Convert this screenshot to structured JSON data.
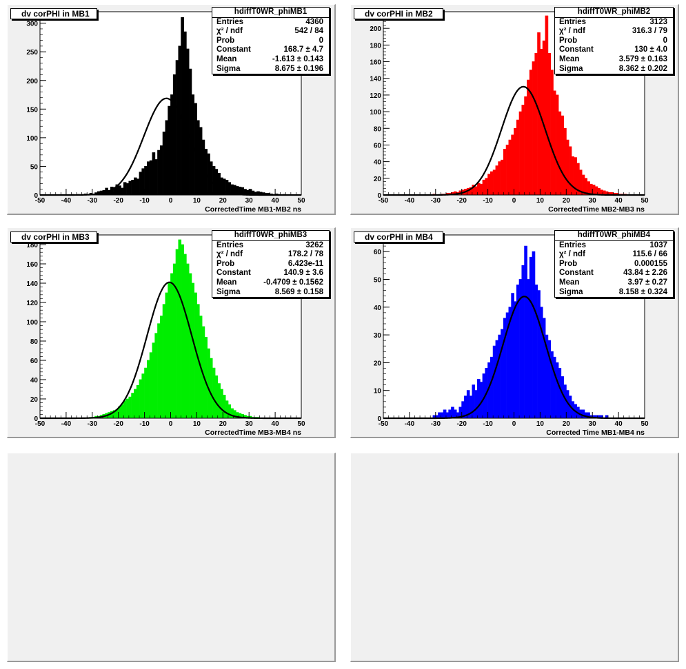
{
  "chart_data": [
    {
      "type": "bar",
      "title": "dv corPHI in MB1",
      "hist_name": "hdiffT0WR_phiMB1",
      "xlabel": "CorrectedTime MB1-MB2   ns",
      "xlim": [
        -50,
        50
      ],
      "ylim": [
        0,
        320
      ],
      "xticks": [
        -50,
        -40,
        -30,
        -20,
        -10,
        0,
        10,
        20,
        30,
        40,
        50
      ],
      "yticks": [
        0,
        50,
        100,
        150,
        200,
        250,
        300
      ],
      "color": "#000000",
      "stats": [
        {
          "label": "Entries",
          "value": "4360"
        },
        {
          "label": "χ² / ndf",
          "value": "542 / 84"
        },
        {
          "label": "Prob",
          "value": "0"
        },
        {
          "label": "Constant",
          "value": "168.7 ± 4.7"
        },
        {
          "label": "Mean",
          "value": "-1.613 ± 0.143"
        },
        {
          "label": "Sigma",
          "value": "8.675 ± 0.196"
        }
      ],
      "fit": {
        "constant": 168.7,
        "mean": -1.613,
        "sigma": 8.675
      },
      "bin_width": 1,
      "x_start": -50,
      "values": [
        0,
        0,
        0,
        0,
        0,
        0,
        0,
        0,
        0,
        0,
        0,
        0,
        1,
        0,
        1,
        0,
        1,
        2,
        1,
        3,
        2,
        4,
        6,
        7,
        8,
        12,
        8,
        14,
        13,
        18,
        16,
        12,
        22,
        20,
        24,
        26,
        30,
        28,
        40,
        46,
        50,
        58,
        60,
        74,
        62,
        78,
        86,
        110,
        130,
        155,
        175,
        210,
        235,
        260,
        310,
        285,
        255,
        220,
        175,
        160,
        130,
        118,
        96,
        80,
        72,
        58,
        50,
        45,
        38,
        30,
        28,
        26,
        22,
        18,
        17,
        15,
        14,
        13,
        10,
        8,
        10,
        7,
        5,
        6,
        5,
        4,
        3,
        3,
        2,
        1,
        2,
        1,
        0,
        1,
        0,
        0,
        0,
        0,
        0,
        0
      ]
    },
    {
      "type": "bar",
      "title": "dv corPHI in MB2",
      "hist_name": "hdiffT0WR_phiMB2",
      "xlabel": "CorrectedTime MB2-MB3   ns",
      "xlim": [
        -50,
        50
      ],
      "ylim": [
        0,
        220
      ],
      "xticks": [
        -50,
        -40,
        -30,
        -20,
        -10,
        0,
        10,
        20,
        30,
        40,
        50
      ],
      "yticks": [
        0,
        20,
        40,
        60,
        80,
        100,
        120,
        140,
        160,
        180,
        200
      ],
      "color": "#ff0000",
      "stats": [
        {
          "label": "Entries",
          "value": "3123"
        },
        {
          "label": "χ² / ndf",
          "value": "316.3 / 79"
        },
        {
          "label": "Prob",
          "value": "0"
        },
        {
          "label": "Constant",
          "value": "130 ± 4.0"
        },
        {
          "label": "Mean",
          "value": "3.579 ± 0.163"
        },
        {
          "label": "Sigma",
          "value": "8.362 ± 0.202"
        }
      ],
      "fit": {
        "constant": 130.0,
        "mean": 3.579,
        "sigma": 8.362
      },
      "bin_width": 1,
      "x_start": -50,
      "values": [
        0,
        0,
        0,
        0,
        0,
        0,
        0,
        0,
        0,
        0,
        0,
        0,
        0,
        0,
        0,
        0,
        0,
        0,
        0,
        1,
        0,
        0,
        1,
        1,
        2,
        2,
        3,
        4,
        3,
        5,
        6,
        7,
        8,
        9,
        12,
        10,
        14,
        13,
        18,
        20,
        25,
        28,
        30,
        35,
        40,
        42,
        55,
        60,
        66,
        72,
        80,
        90,
        100,
        108,
        118,
        138,
        150,
        160,
        170,
        195,
        175,
        185,
        215,
        170,
        150,
        125,
        120,
        100,
        95,
        80,
        66,
        58,
        46,
        45,
        38,
        30,
        24,
        20,
        16,
        13,
        12,
        10,
        8,
        6,
        5,
        4,
        3,
        3,
        2,
        2,
        1,
        1,
        1,
        0,
        0,
        0,
        0,
        0,
        0,
        0
      ]
    },
    {
      "type": "bar",
      "title": "dv corPHI in MB3",
      "hist_name": "hdiffT0WR_phiMB3",
      "xlabel": "CorrectedTime MB3-MB4   ns",
      "xlim": [
        -50,
        50
      ],
      "ylim": [
        0,
        190
      ],
      "xticks": [
        -50,
        -40,
        -30,
        -20,
        -10,
        0,
        10,
        20,
        30,
        40,
        50
      ],
      "yticks": [
        0,
        20,
        40,
        60,
        80,
        100,
        120,
        140,
        160,
        180
      ],
      "color": "#00ee00",
      "stats": [
        {
          "label": "Entries",
          "value": "3262"
        },
        {
          "label": "χ² / ndf",
          "value": "178.2 / 78"
        },
        {
          "label": "Prob",
          "value": "6.423e-11"
        },
        {
          "label": "Constant",
          "value": "140.9 ± 3.6"
        },
        {
          "label": "Mean",
          "value": "-0.4709 ± 0.1562"
        },
        {
          "label": "Sigma",
          "value": "8.569 ± 0.158"
        }
      ],
      "fit": {
        "constant": 140.9,
        "mean": -0.4709,
        "sigma": 8.569
      },
      "bin_width": 1,
      "x_start": -50,
      "values": [
        0,
        0,
        0,
        0,
        0,
        0,
        0,
        0,
        0,
        0,
        0,
        0,
        0,
        0,
        0,
        0,
        0,
        0,
        0,
        1,
        1,
        2,
        2,
        3,
        4,
        5,
        6,
        7,
        8,
        9,
        12,
        14,
        18,
        20,
        22,
        26,
        30,
        34,
        40,
        46,
        52,
        60,
        68,
        78,
        88,
        98,
        106,
        118,
        130,
        140,
        150,
        160,
        175,
        185,
        180,
        170,
        160,
        150,
        140,
        130,
        118,
        106,
        95,
        84,
        72,
        62,
        52,
        44,
        36,
        30,
        24,
        18,
        14,
        10,
        8,
        6,
        5,
        4,
        3,
        2,
        2,
        1,
        1,
        1,
        0,
        0,
        0,
        0,
        0,
        0,
        0,
        0,
        0,
        0,
        0,
        0,
        0,
        0,
        0,
        0
      ]
    },
    {
      "type": "bar",
      "title": "dv corPHI in MB4",
      "hist_name": "hdiffT0WR_phiMB4",
      "xlabel": "Corrected Time MB1-MB4   ns",
      "xlim": [
        -50,
        50
      ],
      "ylim": [
        0,
        66
      ],
      "xticks": [
        -50,
        -40,
        -30,
        -20,
        -10,
        0,
        10,
        20,
        30,
        40,
        50
      ],
      "yticks": [
        0,
        10,
        20,
        30,
        40,
        50,
        60
      ],
      "color": "#0000ff",
      "stats": [
        {
          "label": "Entries",
          "value": "1037"
        },
        {
          "label": "χ² / ndf",
          "value": "115.6 / 66"
        },
        {
          "label": "Prob",
          "value": "0.000155"
        },
        {
          "label": "Constant",
          "value": "43.84 ± 2.26"
        },
        {
          "label": "Mean",
          "value": "3.97 ± 0.27"
        },
        {
          "label": "Sigma",
          "value": "8.158 ± 0.324"
        }
      ],
      "fit": {
        "constant": 43.84,
        "mean": 3.97,
        "sigma": 8.158
      },
      "bin_width": 1,
      "x_start": -50,
      "values": [
        0,
        0,
        0,
        0,
        0,
        0,
        0,
        0,
        0,
        0,
        0,
        0,
        0,
        0,
        0,
        0,
        0,
        0,
        0,
        1,
        1,
        2,
        2,
        3,
        2,
        3,
        4,
        3,
        2,
        4,
        6,
        8,
        10,
        8,
        12,
        10,
        14,
        13,
        16,
        18,
        20,
        22,
        26,
        28,
        30,
        32,
        36,
        38,
        40,
        45,
        42,
        48,
        50,
        55,
        62,
        50,
        58,
        60,
        48,
        46,
        40,
        36,
        30,
        28,
        24,
        22,
        20,
        18,
        15,
        12,
        10,
        8,
        6,
        5,
        4,
        3,
        3,
        2,
        2,
        1,
        1,
        1,
        1,
        1,
        0,
        1,
        0,
        0,
        0,
        0,
        0,
        0,
        0,
        0,
        0,
        0,
        0,
        0,
        0,
        0
      ]
    }
  ]
}
